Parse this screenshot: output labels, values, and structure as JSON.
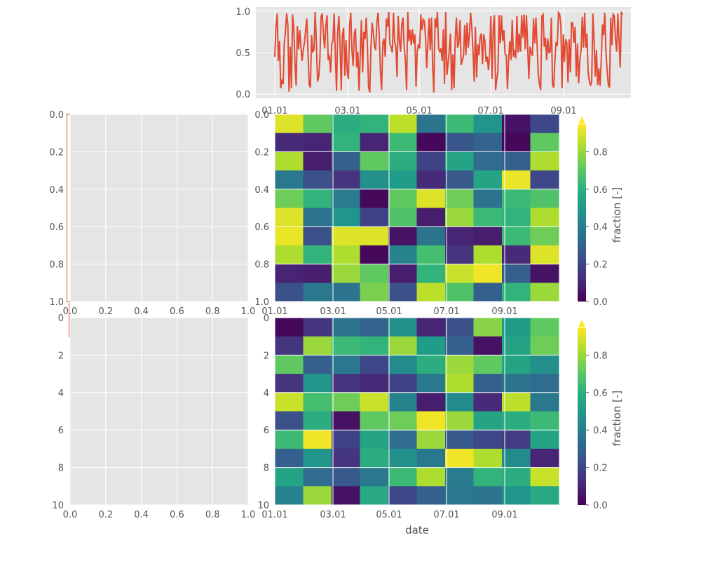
{
  "chart_data": [
    {
      "id": "line-top",
      "type": "line",
      "series": [
        {
          "color": "#E24A33",
          "values": [
            0.45,
            0.82,
            0.97,
            0.4,
            0.64,
            0.07,
            0.16,
            0.12,
            0.61,
            0.75,
            0.97,
            0.84,
            0.03,
            0.57,
            0.07,
            0.96,
            0.79,
            0.38,
            0.1,
            0.82,
            0.54,
            0.77,
            0.57,
            0.4,
            0.53,
            0.62,
            0.77,
            0.91,
            0.49,
            0.12,
            0.08,
            0.71,
            0.5,
            0.54,
            0.99,
            0.63,
            0.15,
            0.21,
            0.42,
            0.93,
            0.97,
            0.73,
            0.55,
            0.82,
            0.95,
            0.41,
            0.47,
            0.26,
            0.61,
            0.64,
            0.97,
            0.45,
            0.04,
            0.74,
            0.94,
            0.6,
            0.05,
            0.71,
            0.8,
            0.22,
            0.65,
            0.28,
            0.18,
            0.82,
            0.98,
            0.52,
            0.34,
            0.73,
            0.79,
            0.32,
            0.51,
            0.04,
            0.48,
            0.89,
            0.26,
            0.75,
            0.66,
            0.92,
            0.59,
            0.08,
            0.02,
            0.57,
            0.86,
            0.74,
            0.58,
            0.53,
            0.86,
            0.98,
            0.7,
            0.27,
            0.05,
            0.62,
            0.67,
            0.45,
            0.91,
            0.81,
            0.99,
            0.6,
            0.57,
            0.5,
            0.98,
            0.63,
            0.57,
            0.21,
            0.94,
            0.64,
            0.51,
            0.84,
            0.92,
            0.57,
            0.41,
            0.05,
            0.99,
            0.64,
            0.77,
            0.59,
            0.78,
            0.61,
            0.72,
            0.09,
            0.51,
            0.6,
            0.55,
            0.96,
            0.77,
            0.9,
            0.88,
            0.68,
            0.31,
            0.61,
            0.91,
            0.53,
            0.92,
            0.34,
            0.02,
            0.91,
            0.8,
            0.99,
            0.55,
            0.51,
            0.55,
            0.4,
            0.78,
            0.12,
            0.99,
            0.23,
            0.37,
            0.53,
            0.73,
            0.05,
            0.48,
            0.07,
            0.67,
            0.92,
            0.56,
            0.61,
            0.89,
            0.35,
            0.41,
            0.46,
            0.83,
            0.47,
            0.86,
            0.56,
            0.73,
            0.98,
            0.8,
            0.51,
            0.15,
            0.81,
            0.2,
            0.6,
            0.47,
            0.69,
            0.73,
            0.36,
            0.72,
            0.64,
            0.39,
            0.45,
            0.29,
            0.47,
            0.94,
            0.18,
            0.79,
            0.95,
            0.05,
            0.18,
            0.27,
            0.95,
            0.61,
            0.95,
            0.64,
            0.77,
            0.48,
            0.47,
            0.06,
            0.43,
            0.64,
            0.41,
            0.89,
            0.45,
            0.53,
            0.43,
            0.94,
            0.5,
            0.73,
            0.51,
            0.95,
            0.68,
            0.96,
            0.54,
            0.95,
            0.59,
            0.18,
            0.57,
            0.5,
            0.46,
            0.91,
            0.61,
            0.92,
            0.59,
            0.24,
            0.12,
            0.05,
            0.94,
            0.96,
            0.57,
            0.68,
            0.41,
            0.67,
            0.5,
            0.51,
            0.92,
            0.11,
            0.08,
            0.41,
            0.63,
            0.58,
            0.98,
            0.96,
            0.83,
            0.07,
            0.72,
            0.39,
            0.66,
            0.62,
            0.14,
            0.66,
            0.26,
            0.86,
            0.86,
            0.62,
            0.81,
            0.21,
            0.61,
            0.13,
            0.41,
            0.53,
            0.93,
            0.56,
            0.98,
            0.56,
            0.73,
            0.26,
            0.16,
            0.1,
            0.16,
            0.97,
            0.65,
            0.21,
            0.53,
            0.11,
            0.31,
            0.1,
            0.4,
            0.84,
            0.71,
            0.98,
            0.5,
            0.29,
            0.11,
            0.08,
            0.92,
            0.59,
            0.96,
            0.94,
            0.67,
            0.51,
            0.97,
            0.65,
            0.32,
            0.98,
            0.96
          ]
        }
      ],
      "xlim": [
        0,
        300
      ],
      "ylim": [
        -0.02,
        1.02
      ],
      "yticks": [
        "0.0",
        "0.5",
        "1.0"
      ],
      "xticks": [
        "01.01",
        "03.01",
        "05.01",
        "07.01",
        "09.01"
      ]
    },
    {
      "id": "empty-left-1",
      "type": "scatter",
      "xticks": [
        "0.0",
        "0.2",
        "0.4",
        "0.6",
        "0.8",
        "1.0"
      ],
      "yticks": [
        "0.0",
        "0.2",
        "0.4",
        "0.6",
        "0.8",
        "1.0"
      ],
      "xlim": [
        0,
        1
      ],
      "ylim": [
        1,
        0
      ]
    },
    {
      "id": "heatmap-1",
      "type": "heatmap",
      "rows": 10,
      "cols": 10,
      "values": [
        [
          0.95,
          0.75,
          0.62,
          0.65,
          0.9,
          0.38,
          0.68,
          0.52,
          0.05,
          0.22
        ],
        [
          0.12,
          0.1,
          0.65,
          0.1,
          0.68,
          0.02,
          0.27,
          0.32,
          0.02,
          0.75
        ],
        [
          0.88,
          0.08,
          0.3,
          0.75,
          0.62,
          0.2,
          0.58,
          0.35,
          0.3,
          0.88
        ],
        [
          0.4,
          0.25,
          0.15,
          0.5,
          0.55,
          0.12,
          0.28,
          0.58,
          0.97,
          0.22
        ],
        [
          0.78,
          0.65,
          0.42,
          0.02,
          0.75,
          0.95,
          0.78,
          0.38,
          0.68,
          0.72
        ],
        [
          0.95,
          0.38,
          0.52,
          0.2,
          0.72,
          0.08,
          0.85,
          0.68,
          0.65,
          0.88
        ],
        [
          0.97,
          0.25,
          0.95,
          0.95,
          0.05,
          0.38,
          0.1,
          0.08,
          0.68,
          0.78
        ],
        [
          0.88,
          0.65,
          0.88,
          0.02,
          0.45,
          0.7,
          0.15,
          0.88,
          0.12,
          0.95
        ],
        [
          0.1,
          0.08,
          0.85,
          0.75,
          0.08,
          0.65,
          0.92,
          0.98,
          0.3,
          0.05
        ],
        [
          0.25,
          0.4,
          0.38,
          0.8,
          0.25,
          0.9,
          0.72,
          0.3,
          0.65,
          0.85
        ]
      ],
      "ytick_labels": [
        "0.0",
        "0.2",
        "0.4",
        "0.6",
        "0.8",
        "1.0"
      ],
      "xtick_labels": [
        "01.01",
        "03.01",
        "05.01",
        "07.01",
        "09.01"
      ],
      "colorbar": {
        "label": "fraction [-]",
        "ticks": [
          "0.0",
          "0.2",
          "0.4",
          "0.6",
          "0.8"
        ],
        "range": [
          0,
          1
        ]
      }
    },
    {
      "id": "empty-left-2",
      "type": "scatter",
      "xticks": [
        "0.0",
        "0.2",
        "0.4",
        "0.6",
        "0.8",
        "1.0"
      ],
      "yticks": [
        "0",
        "2",
        "4",
        "6",
        "8",
        "10"
      ],
      "xlim": [
        0,
        1
      ],
      "ylim": [
        10,
        0
      ]
    },
    {
      "id": "heatmap-2",
      "type": "heatmap",
      "rows": 10,
      "cols": 10,
      "values": [
        [
          0.02,
          0.15,
          0.38,
          0.32,
          0.5,
          0.1,
          0.25,
          0.82,
          0.55,
          0.75
        ],
        [
          0.15,
          0.85,
          0.68,
          0.65,
          0.85,
          0.55,
          0.3,
          0.05,
          0.58,
          0.78
        ],
        [
          0.75,
          0.3,
          0.4,
          0.22,
          0.48,
          0.62,
          0.85,
          0.75,
          0.58,
          0.5
        ],
        [
          0.15,
          0.52,
          0.15,
          0.12,
          0.2,
          0.4,
          0.88,
          0.3,
          0.38,
          0.35
        ],
        [
          0.92,
          0.7,
          0.78,
          0.92,
          0.45,
          0.08,
          0.48,
          0.12,
          0.9,
          0.4
        ],
        [
          0.25,
          0.62,
          0.05,
          0.75,
          0.78,
          0.98,
          0.85,
          0.58,
          0.62,
          0.68
        ],
        [
          0.68,
          0.98,
          0.2,
          0.58,
          0.35,
          0.85,
          0.28,
          0.22,
          0.18,
          0.58
        ],
        [
          0.3,
          0.52,
          0.15,
          0.62,
          0.5,
          0.4,
          0.98,
          0.88,
          0.48,
          0.1
        ],
        [
          0.58,
          0.35,
          0.28,
          0.4,
          0.68,
          0.88,
          0.42,
          0.65,
          0.62,
          0.92
        ],
        [
          0.45,
          0.85,
          0.05,
          0.6,
          0.22,
          0.3,
          0.4,
          0.38,
          0.52,
          0.6
        ]
      ],
      "ytick_labels": [
        "0",
        "2",
        "4",
        "6",
        "8",
        "10"
      ],
      "xtick_labels": [
        "01.01",
        "03.01",
        "05.01",
        "07.01",
        "09.01"
      ],
      "xlabel": "date",
      "colorbar": {
        "label": "fraction [-]",
        "ticks": [
          "0.0",
          "0.2",
          "0.4",
          "0.6",
          "0.8"
        ],
        "range": [
          0,
          1
        ]
      }
    }
  ],
  "style": {
    "axes_facecolor": "#E5E5E5",
    "grid_color": "#FFFFFF",
    "line_color": "#E24A33",
    "text_color": "#555555",
    "colormap": "viridis"
  }
}
